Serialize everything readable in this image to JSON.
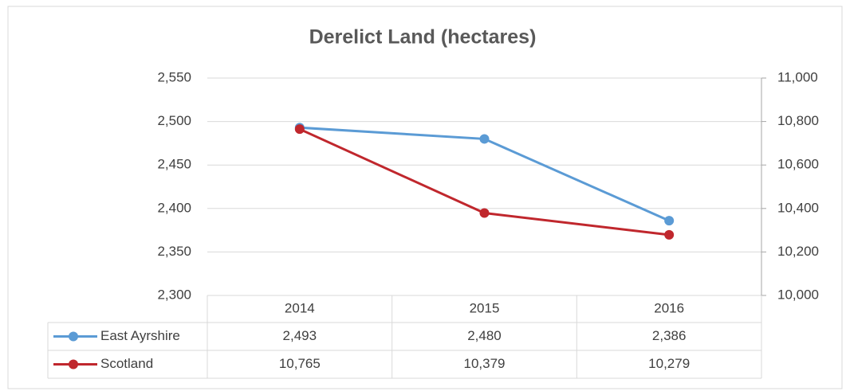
{
  "chart_data": {
    "type": "line",
    "title": "Derelict Land (hectares)",
    "categories": [
      "2014",
      "2015",
      "2016"
    ],
    "series": [
      {
        "name": "East Ayrshire",
        "color": "#5b9bd5",
        "values": [
          2493,
          2480,
          2386
        ],
        "value_labels": [
          "2,493",
          "2,480",
          "2,386"
        ]
      },
      {
        "name": "Scotland",
        "color": "#c0272d",
        "values": [
          10765,
          10379,
          10279
        ],
        "value_labels": [
          "10,765",
          "10,379",
          "10,279"
        ],
        "axis": "y2"
      }
    ],
    "ylim": [
      2300,
      2550
    ],
    "yticks": [
      {
        "value": 2300,
        "label": "2,300"
      },
      {
        "value": 2350,
        "label": "2,350"
      },
      {
        "value": 2400,
        "label": "2,400"
      },
      {
        "value": 2450,
        "label": "2,450"
      },
      {
        "value": 2500,
        "label": "2,500"
      },
      {
        "value": 2550,
        "label": "2,550"
      }
    ],
    "y2lim": [
      10000,
      11000
    ],
    "y2ticks": [
      {
        "value": 10000,
        "label": "10,000"
      },
      {
        "value": 10200,
        "label": "10,200"
      },
      {
        "value": 10400,
        "label": "10,400"
      },
      {
        "value": 10600,
        "label": "10,600"
      },
      {
        "value": 10800,
        "label": "10,800"
      },
      {
        "value": 11000,
        "label": "11,000"
      }
    ],
    "grid": true
  }
}
